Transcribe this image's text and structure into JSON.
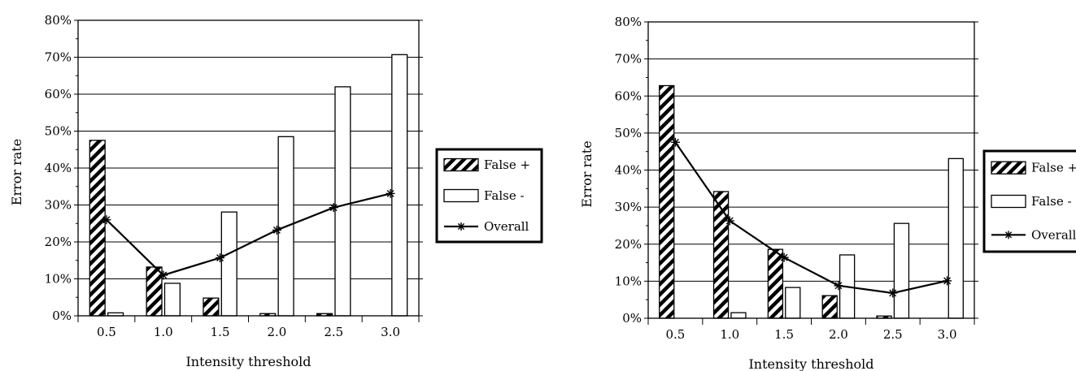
{
  "chart_data": [
    {
      "type": "bar",
      "title": "",
      "xlabel": "Intensity threshold",
      "ylabel": "Error rate",
      "ylim": [
        0,
        80
      ],
      "y_ticks": [
        "0%",
        "10%",
        "20%",
        "30%",
        "40%",
        "50%",
        "60%",
        "70%",
        "80%"
      ],
      "categories": [
        "0.5",
        "1.0",
        "1.5",
        "2.0",
        "2.5",
        "3.0"
      ],
      "grid": true,
      "legend_position": "right",
      "series": [
        {
          "name": "False +",
          "kind": "bar",
          "pattern": "diagonal-hatch",
          "values": [
            47.5,
            13.2,
            4.8,
            0.6,
            0.6,
            0
          ]
        },
        {
          "name": "False -",
          "kind": "bar",
          "pattern": "white",
          "values": [
            0.8,
            8.8,
            28.1,
            48.5,
            62.0,
            70.7
          ]
        },
        {
          "name": "Overall",
          "kind": "line",
          "marker": "asterisk",
          "values": [
            26.0,
            11.0,
            15.7,
            23.2,
            29.3,
            33.1
          ]
        }
      ]
    },
    {
      "type": "bar",
      "title": "",
      "xlabel": "Intensity threshold",
      "ylabel": "Error rate",
      "ylim": [
        0,
        80
      ],
      "y_ticks": [
        "0%",
        "10%",
        "20%",
        "30%",
        "40%",
        "50%",
        "60%",
        "70%",
        "80%"
      ],
      "categories": [
        "0.5",
        "1.0",
        "1.5",
        "2.0",
        "2.5",
        "3.0"
      ],
      "grid": true,
      "legend_position": "right",
      "series": [
        {
          "name": "False +",
          "kind": "bar",
          "pattern": "diagonal-hatch",
          "values": [
            62.8,
            34.2,
            18.6,
            6.1,
            0.6,
            0
          ]
        },
        {
          "name": "False -",
          "kind": "bar",
          "pattern": "white",
          "values": [
            0,
            1.5,
            8.3,
            17.1,
            25.6,
            43.1
          ]
        },
        {
          "name": "Overall",
          "kind": "line",
          "marker": "asterisk",
          "values": [
            47.5,
            26.3,
            16.4,
            8.8,
            6.8,
            10.1
          ]
        }
      ]
    }
  ]
}
